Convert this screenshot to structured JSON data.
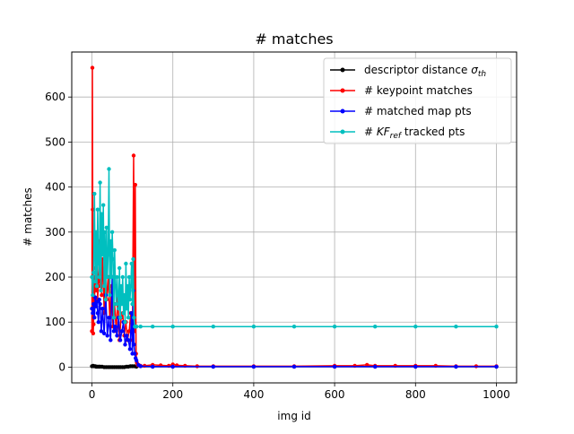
{
  "chart_data": {
    "type": "line",
    "title": "# matches",
    "xlabel": "img id",
    "ylabel": "# matches",
    "xlim": [
      -50,
      1050
    ],
    "ylim": [
      -35,
      700
    ],
    "xticks": [
      0,
      200,
      400,
      600,
      800,
      1000
    ],
    "yticks": [
      0,
      100,
      200,
      300,
      400,
      500,
      600
    ],
    "grid": true,
    "legend_position": "top-right",
    "marker": "dot",
    "colors": {
      "descriptor": "#000000",
      "keypoint": "#ff0000",
      "mapPts": "#0000ff",
      "tracked": "#00bfbf"
    },
    "series": [
      {
        "key": "descriptor",
        "name_prefix": "descriptor distance ",
        "name_math": "σ",
        "name_sub": "th",
        "name_suffix": "",
        "color": "#000000",
        "x": [
          0,
          3,
          5,
          8,
          10,
          12,
          15,
          18,
          20,
          25,
          30,
          35,
          40,
          45,
          50,
          55,
          60,
          65,
          70,
          75,
          80,
          85,
          90,
          95,
          100,
          105,
          110,
          150,
          200,
          300,
          400,
          500,
          600,
          700,
          800,
          900,
          1000
        ],
        "y": [
          2,
          3,
          2,
          2,
          1,
          1,
          1,
          1,
          1,
          1,
          0,
          0,
          0,
          0,
          0,
          0,
          0,
          0,
          0,
          0,
          0,
          1,
          1,
          2,
          2,
          2,
          1,
          1,
          1,
          1,
          1,
          1,
          1,
          1,
          1,
          1,
          1
        ]
      },
      {
        "key": "keypoint",
        "name_prefix": "# keypoint matches",
        "name_math": "",
        "name_sub": "",
        "name_suffix": "",
        "color": "#ff0000",
        "x": [
          0,
          1,
          2,
          3,
          4,
          5,
          6,
          8,
          10,
          12,
          14,
          16,
          18,
          20,
          22,
          24,
          26,
          28,
          30,
          33,
          36,
          40,
          44,
          48,
          52,
          56,
          60,
          64,
          68,
          72,
          76,
          80,
          84,
          88,
          92,
          96,
          100,
          103,
          105,
          107,
          109,
          111,
          113,
          116,
          120,
          130,
          150,
          170,
          190,
          200,
          210,
          230,
          260,
          300,
          400,
          500,
          600,
          650,
          680,
          700,
          750,
          800,
          850,
          900,
          950,
          1000
        ],
        "y": [
          80,
          665,
          350,
          75,
          95,
          200,
          140,
          220,
          170,
          260,
          150,
          190,
          280,
          180,
          230,
          160,
          240,
          200,
          120,
          210,
          150,
          200,
          110,
          180,
          90,
          140,
          80,
          160,
          60,
          110,
          120,
          70,
          100,
          60,
          80,
          120,
          60,
          470,
          80,
          405,
          30,
          10,
          5,
          4,
          3,
          3,
          5,
          4,
          3,
          6,
          4,
          3,
          2,
          2,
          2,
          2,
          3,
          3,
          5,
          3,
          3,
          3,
          3,
          2,
          2,
          2
        ]
      },
      {
        "key": "mapPts",
        "name_prefix": "# matched map pts",
        "name_math": "",
        "name_sub": "",
        "name_suffix": "",
        "color": "#0000ff",
        "x": [
          0,
          2,
          4,
          6,
          8,
          10,
          12,
          14,
          16,
          18,
          20,
          23,
          26,
          30,
          34,
          38,
          42,
          46,
          50,
          54,
          58,
          62,
          66,
          70,
          74,
          78,
          82,
          86,
          90,
          94,
          98,
          100,
          102,
          104,
          106,
          108,
          110,
          115,
          120,
          150,
          200,
          300,
          400,
          500,
          600,
          700,
          800,
          900,
          1000
        ],
        "y": [
          130,
          120,
          140,
          110,
          155,
          135,
          145,
          120,
          100,
          150,
          140,
          80,
          130,
          75,
          160,
          70,
          110,
          60,
          200,
          80,
          90,
          70,
          110,
          60,
          80,
          100,
          50,
          70,
          60,
          40,
          120,
          30,
          170,
          50,
          30,
          20,
          15,
          5,
          2,
          1,
          1,
          1,
          1,
          1,
          1,
          1,
          1,
          1,
          1
        ]
      },
      {
        "key": "tracked",
        "name_prefix": "# ",
        "name_math": "KF",
        "name_sub": "ref",
        "name_suffix": "  tracked pts",
        "color": "#00bfbf",
        "x": [
          0,
          2,
          4,
          6,
          8,
          10,
          12,
          14,
          16,
          18,
          20,
          22,
          24,
          26,
          28,
          30,
          32,
          34,
          36,
          38,
          40,
          42,
          44,
          46,
          48,
          50,
          52,
          54,
          56,
          58,
          60,
          62,
          64,
          66,
          68,
          70,
          72,
          74,
          76,
          78,
          80,
          82,
          84,
          86,
          88,
          90,
          92,
          94,
          96,
          98,
          100,
          102,
          104,
          106,
          108,
          110,
          120,
          150,
          200,
          300,
          400,
          500,
          600,
          700,
          800,
          900,
          1000
        ],
        "y": [
          200,
          160,
          210,
          385,
          190,
          300,
          180,
          350,
          230,
          200,
          410,
          170,
          340,
          250,
          360,
          180,
          300,
          150,
          310,
          200,
          250,
          440,
          160,
          280,
          200,
          300,
          240,
          110,
          260,
          180,
          140,
          200,
          160,
          130,
          220,
          110,
          180,
          140,
          200,
          120,
          160,
          100,
          230,
          130,
          180,
          110,
          200,
          150,
          180,
          230,
          140,
          240,
          110,
          90,
          90,
          90,
          90,
          90,
          90,
          90,
          90,
          90,
          90,
          90,
          90,
          90,
          90
        ]
      }
    ]
  }
}
